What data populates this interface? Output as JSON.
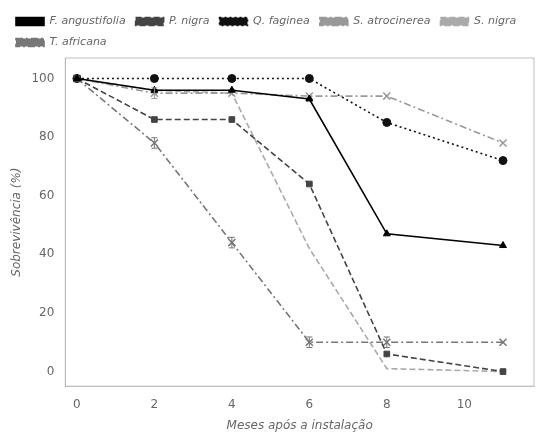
{
  "chart_data": {
    "type": "line",
    "xlabel": "Meses após a instalação",
    "ylabel": "Sobrevivência (%)",
    "x": [
      0,
      2,
      4,
      6,
      8,
      11
    ],
    "xlim": [
      -0.3,
      11.8
    ],
    "ylim": [
      -5,
      107
    ],
    "xticks": [
      0,
      2,
      4,
      6,
      8,
      10
    ],
    "yticks": [
      0,
      20,
      40,
      60,
      80,
      100
    ],
    "grid": false,
    "legend": "upper left",
    "series": [
      {
        "name": "F. angustifolia",
        "color": "#000000",
        "marker": "triangle",
        "line_style": "solid",
        "values": [
          100,
          96,
          96,
          93,
          47,
          43
        ]
      },
      {
        "name": "P. nigra",
        "color": "#444444",
        "marker": "square",
        "line_style": "dashed",
        "values": [
          100,
          86,
          86,
          64,
          6,
          0
        ]
      },
      {
        "name": "Q. faginea",
        "color": "#111111",
        "marker": "circle",
        "line_style": "dotted",
        "values": [
          100,
          100,
          100,
          100,
          85,
          72
        ]
      },
      {
        "name": "S. atrocinerea",
        "color": "#999999",
        "marker": "x",
        "line_style": "dashdot",
        "values": [
          100,
          95,
          95,
          94,
          94,
          78
        ],
        "error": [
          null,
          1.8,
          null,
          null,
          null,
          null
        ]
      },
      {
        "name": "S. nigra",
        "color": "#aaaaaa",
        "marker": "none",
        "line_style": "dashed",
        "values": [
          100,
          96,
          95,
          42,
          1,
          0
        ]
      },
      {
        "name": "T. africana",
        "color": "#777777",
        "marker": "x",
        "line_style": "dashdot",
        "values": [
          100,
          78,
          44,
          10,
          10,
          10
        ],
        "error": [
          null,
          1.8,
          1.8,
          1.8,
          1.8,
          null
        ]
      }
    ]
  }
}
